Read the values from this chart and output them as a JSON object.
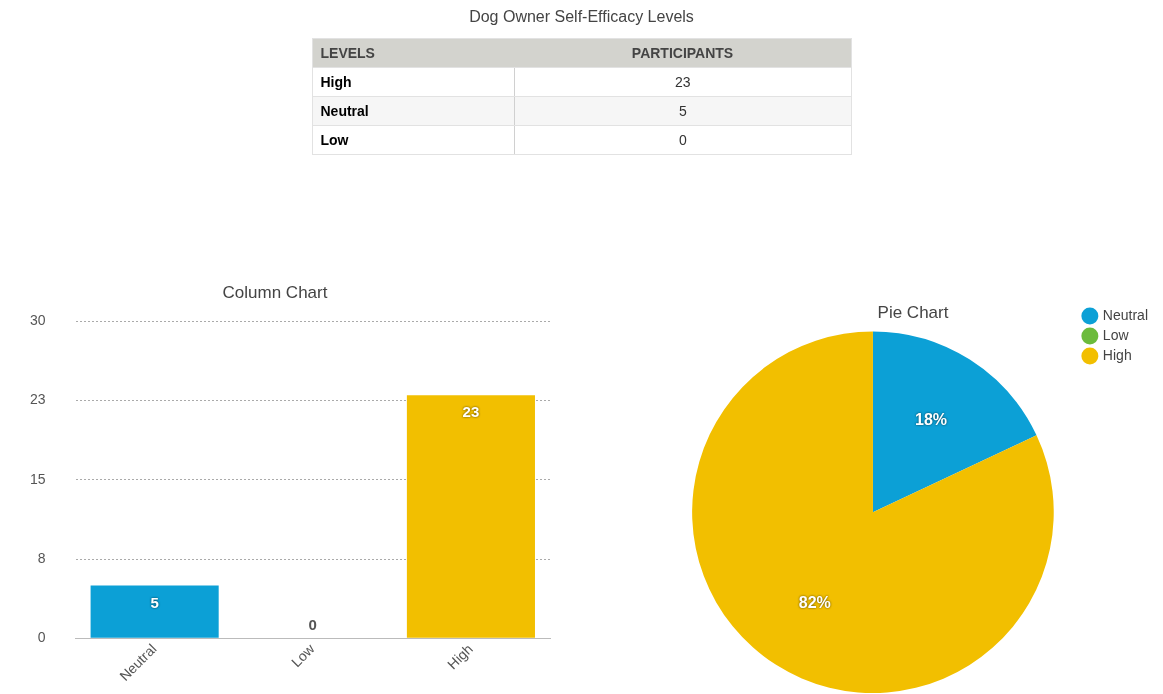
{
  "chart_data": [
    {
      "type": "other",
      "title": "Dog Owner Self-Efficacy Levels",
      "xlabel": "LEVELS",
      "ylabel": "PARTICIPANTS",
      "categories": [
        "High",
        "Neutral",
        "Low"
      ],
      "values": [
        23,
        5,
        0
      ],
      "data_labels": true
    },
    {
      "type": "bar",
      "title": "Column Chart",
      "categories": [
        "Neutral",
        "Low",
        "High"
      ],
      "values": [
        5,
        0,
        23
      ],
      "colors": [
        "#0ca0d6",
        "#6cbb3c",
        "#f2bf00"
      ],
      "ylim": [
        0,
        30
      ],
      "yticks": [
        0,
        {
          "value": 7.5,
          "label": "8"
        },
        15,
        {
          "value": 22.5,
          "label": "23"
        },
        30
      ],
      "grid": "y",
      "data_labels": true
    },
    {
      "type": "pie",
      "title": "Pie Chart",
      "categories": [
        "Neutral",
        "Low",
        "High"
      ],
      "values": [
        18,
        0,
        82
      ],
      "colors": [
        "#0ca0d6",
        "#6cbb3c",
        "#f2bf00"
      ],
      "value_labels": [
        "18%",
        null,
        "82%"
      ],
      "legend": "top right"
    }
  ]
}
